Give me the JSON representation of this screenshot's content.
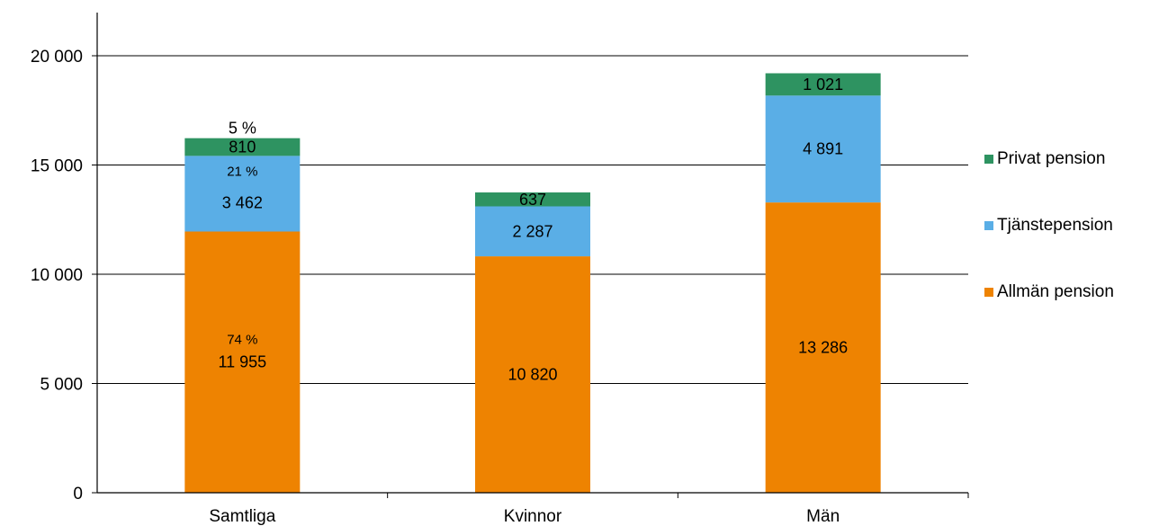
{
  "chart_data": {
    "type": "bar",
    "stacked": true,
    "categories": [
      "Samtliga",
      "Kvinnor",
      "Män"
    ],
    "series": [
      {
        "name": "Allmän pension",
        "color": "#EE8301",
        "values": [
          11955,
          10820,
          13286
        ],
        "labels": [
          "11 955",
          "10 820",
          "13 286"
        ]
      },
      {
        "name": "Tjänstepension",
        "color": "#5AAEE6",
        "values": [
          3462,
          2287,
          4891
        ],
        "labels": [
          "3 462",
          "2 287",
          "4 891"
        ]
      },
      {
        "name": "Privat pension",
        "color": "#2E9361",
        "values": [
          810,
          637,
          1021
        ],
        "labels": [
          "810",
          "637",
          "1 021"
        ]
      }
    ],
    "percent_labels": [
      {
        "category": "Samtliga",
        "series": "Allmän pension",
        "text": "74 %"
      },
      {
        "category": "Samtliga",
        "series": "Tjänstepension",
        "text": "21 %"
      },
      {
        "category": "Samtliga",
        "series": "Privat pension",
        "text": "5 %"
      }
    ],
    "yticks": [
      0,
      5000,
      10000,
      15000,
      20000
    ],
    "ytick_labels": [
      "0",
      "5 000",
      "10 000",
      "15 000",
      "20 000"
    ],
    "ylim": [
      0,
      20000
    ],
    "grid": true,
    "legend_position": "right",
    "legend_order": [
      "Privat pension",
      "Tjänstepension",
      "Allmän pension"
    ]
  }
}
